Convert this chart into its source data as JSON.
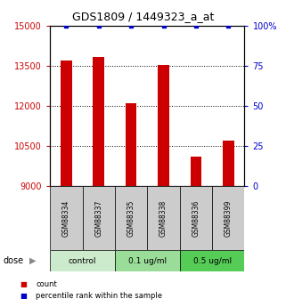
{
  "title": "GDS1809 / 1449323_a_at",
  "samples": [
    "GSM88334",
    "GSM88337",
    "GSM88335",
    "GSM88338",
    "GSM88336",
    "GSM88399"
  ],
  "counts": [
    13700,
    13850,
    12100,
    13550,
    10100,
    10700
  ],
  "percentile_ranks": [
    100,
    100,
    100,
    100,
    100,
    100
  ],
  "groups": [
    {
      "label": "control",
      "samples": [
        "GSM88334",
        "GSM88337"
      ],
      "color": "#cceacc"
    },
    {
      "label": "0.1 ug/ml",
      "samples": [
        "GSM88335",
        "GSM88338"
      ],
      "color": "#99dd99"
    },
    {
      "label": "0.5 ug/ml",
      "samples": [
        "GSM88336",
        "GSM88399"
      ],
      "color": "#55cc55"
    }
  ],
  "ylim_left": [
    9000,
    15000
  ],
  "ylim_right": [
    0,
    100
  ],
  "yticks_left": [
    9000,
    10500,
    12000,
    13500,
    15000
  ],
  "yticks_right": [
    0,
    25,
    50,
    75,
    100
  ],
  "ytick_labels_left": [
    "9000",
    "10500",
    "12000",
    "13500",
    "15000"
  ],
  "ytick_labels_right": [
    "0",
    "25",
    "50",
    "75",
    "100%"
  ],
  "bar_color": "#cc0000",
  "dot_color": "#0000cc",
  "left_axis_color": "#cc0000",
  "right_axis_color": "#0000cc",
  "dose_label": "dose",
  "legend_count": "count",
  "legend_percentile": "percentile rank within the sample",
  "sample_box_color": "#cccccc",
  "bar_width": 0.35
}
